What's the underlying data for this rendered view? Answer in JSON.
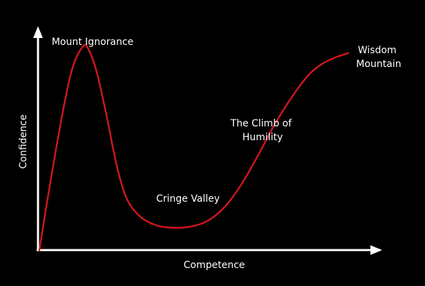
{
  "chart_data": {
    "type": "line",
    "title": "",
    "xlabel": "Competence",
    "ylabel": "Confidence",
    "grid": false,
    "legend": "none",
    "colors": {
      "background": "#000000",
      "axis": "#ffffff",
      "curve": "#d0161e",
      "text": "#ffffff"
    },
    "xlim": [
      0,
      100
    ],
    "ylim": [
      0,
      100
    ],
    "series": [
      {
        "points": [
          [
            0,
            0
          ],
          [
            3,
            28
          ],
          [
            7,
            62
          ],
          [
            10,
            82
          ],
          [
            13,
            91
          ],
          [
            14.5,
            90
          ],
          [
            17,
            80
          ],
          [
            20,
            60
          ],
          [
            23,
            38
          ],
          [
            26,
            23
          ],
          [
            30,
            15
          ],
          [
            35,
            11
          ],
          [
            40,
            10
          ],
          [
            45,
            10.5
          ],
          [
            50,
            13
          ],
          [
            55,
            19
          ],
          [
            60,
            29
          ],
          [
            65,
            42
          ],
          [
            70,
            56
          ],
          [
            75,
            68
          ],
          [
            80,
            78
          ],
          [
            84,
            83
          ],
          [
            88,
            86
          ],
          [
            92,
            88
          ]
        ]
      }
    ],
    "annotations": [
      {
        "id": "mount-ignorance",
        "lines": [
          "Mount Ignorance"
        ]
      },
      {
        "id": "cringe-valley",
        "lines": [
          "Cringe Valley"
        ]
      },
      {
        "id": "climb-of-humility",
        "lines": [
          "The Climb of",
          "Humility"
        ]
      },
      {
        "id": "wisdom-mountain",
        "lines": [
          "Wisdom",
          "Mountain"
        ]
      }
    ]
  }
}
